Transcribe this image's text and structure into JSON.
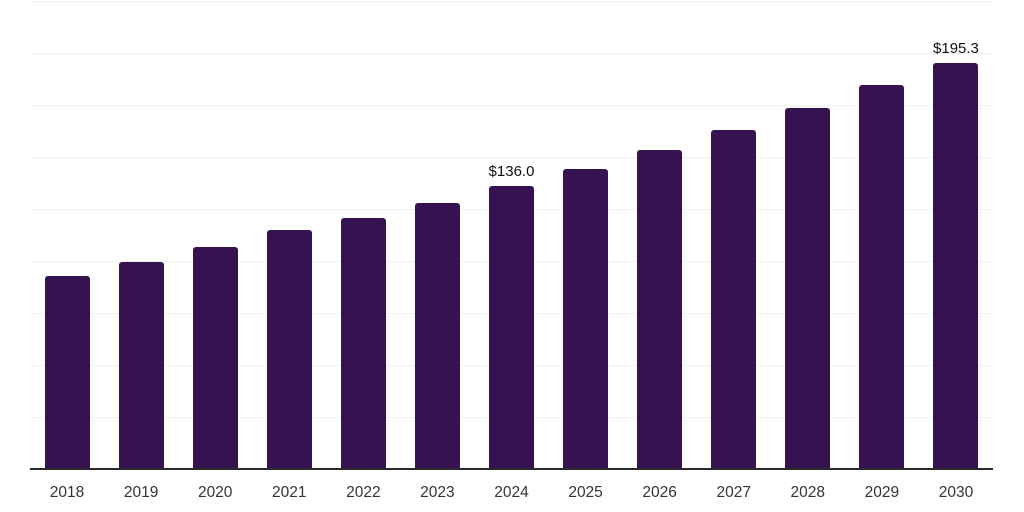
{
  "chart_data": {
    "type": "bar",
    "title": "",
    "xlabel": "",
    "ylabel": "",
    "categories": [
      "2018",
      "2019",
      "2020",
      "2021",
      "2022",
      "2023",
      "2024",
      "2025",
      "2026",
      "2027",
      "2028",
      "2029",
      "2030"
    ],
    "values": [
      92.8,
      99.5,
      106.7,
      114.9,
      120.7,
      127.9,
      136.0,
      144.2,
      153.4,
      163.0,
      173.6,
      184.6,
      195.3
    ],
    "bar_labels": {
      "2024": "$136.0",
      "2030": "$195.3"
    },
    "ylim": [
      0,
      225
    ],
    "grid_step": 25,
    "grid": "horizontal-only",
    "legend_position": "none",
    "colors": {
      "bar": "#361250",
      "grid": "#f0f0f0",
      "axis": "#2b2b2b",
      "value_label": "#111111",
      "tick_label": "#333333",
      "background": "#ffffff"
    }
  }
}
